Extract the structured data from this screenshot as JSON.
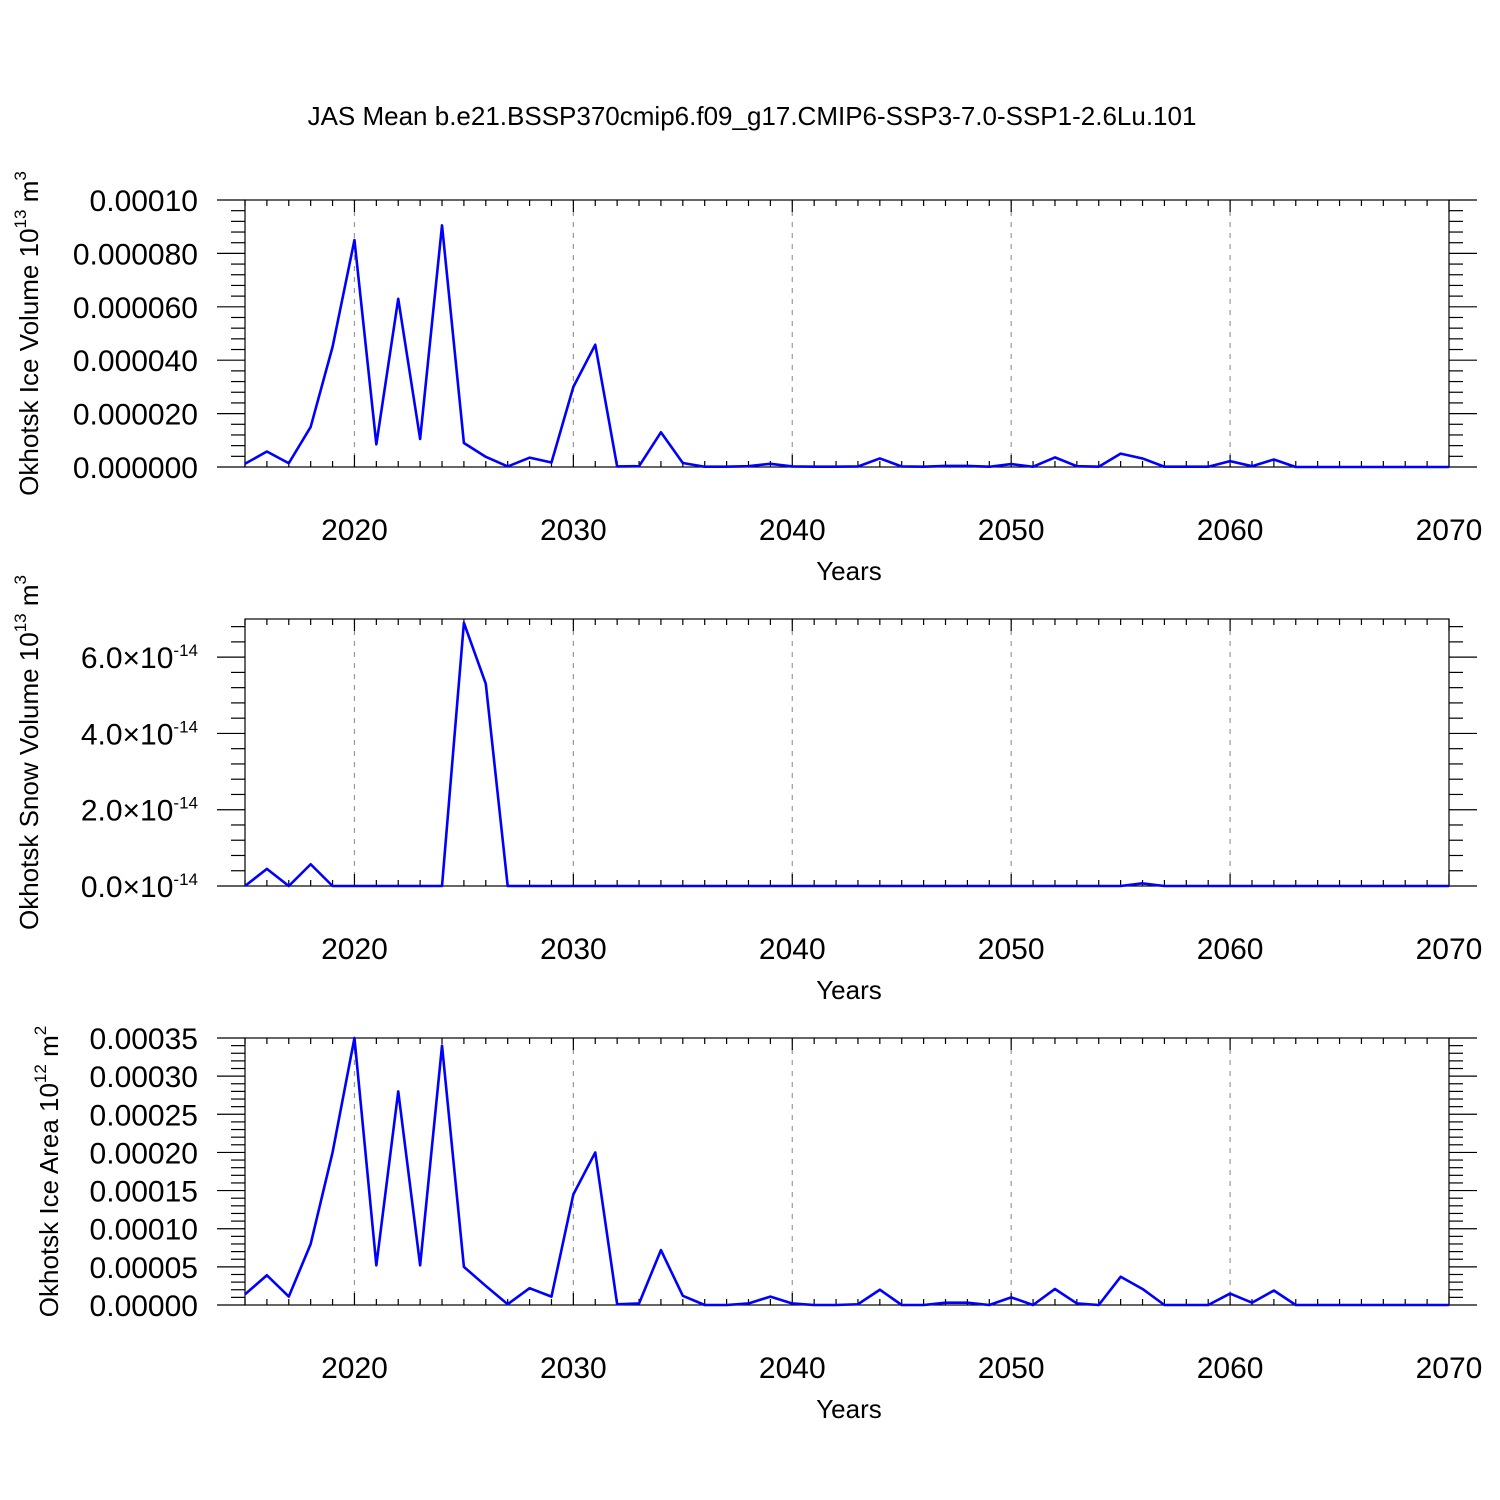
{
  "title": "JAS Mean b.e21.BSSP370cmip6.f09_g17.CMIP6-SSP3-7.0-SSP1-2.6Lu.101",
  "line_color": "#0000ff",
  "chart_data": [
    {
      "type": "line",
      "ylabel": "Okhotsk Ice Volume 10",
      "ylabel_exp": "13",
      "ylabel_unit": "m",
      "ylabel_unit_exp": "3",
      "xlabel": "Years",
      "xlim": [
        2015,
        2070
      ],
      "ylim": [
        0,
        0.0001
      ],
      "xticks": [
        "2020",
        "2030",
        "2040",
        "2050",
        "2060",
        "2070"
      ],
      "yticks": [
        {
          "value": 0,
          "label": "0.000000"
        },
        {
          "value": 2e-05,
          "label": "0.000020"
        },
        {
          "value": 4e-05,
          "label": "0.000040"
        },
        {
          "value": 6e-05,
          "label": "0.000060"
        },
        {
          "value": 8e-05,
          "label": "0.000080"
        },
        {
          "value": 0.0001,
          "label": "0.00010"
        }
      ],
      "grid": "x-major dashed",
      "x": [
        2015,
        2016,
        2017,
        2018,
        2019,
        2020,
        2021,
        2022,
        2023,
        2024,
        2025,
        2026,
        2027,
        2028,
        2029,
        2030,
        2031,
        2032,
        2033,
        2034,
        2035,
        2036,
        2037,
        2038,
        2039,
        2040,
        2041,
        2042,
        2043,
        2044,
        2045,
        2046,
        2047,
        2048,
        2049,
        2050,
        2051,
        2052,
        2053,
        2054,
        2055,
        2056,
        2057,
        2058,
        2059,
        2060,
        2061,
        2062,
        2063,
        2064,
        2065,
        2066,
        2067,
        2068,
        2069,
        2070
      ],
      "values": [
        1.2e-06,
        5.8e-06,
        1.4e-06,
        1.5e-05,
        4.5e-05,
        8.5e-05,
        8.5e-06,
        6.3e-05,
        1.05e-05,
        9.05e-05,
        9e-06,
        3.8e-06,
        2e-07,
        3.5e-06,
        1.7e-06,
        3e-05,
        4.58e-05,
        2e-07,
        3e-07,
        1.3e-05,
        1.5e-06,
        1e-07,
        1e-07,
        3e-07,
        1.2e-06,
        2e-07,
        1e-07,
        1e-07,
        2e-07,
        3.2e-06,
        2e-07,
        1e-07,
        4e-07,
        4e-07,
        1e-07,
        1.1e-06,
        1e-07,
        3.6e-06,
        3e-07,
        1e-07,
        5e-06,
        3.2e-06,
        1e-07,
        1e-07,
        1e-07,
        2.2e-06,
        3e-07,
        2.8e-06,
        0.0,
        0.0,
        0.0,
        0.0,
        0.0,
        0.0,
        0.0,
        0.0
      ]
    },
    {
      "type": "line",
      "ylabel": "Okhotsk Snow Volume 10",
      "ylabel_exp": "13",
      "ylabel_unit": "m",
      "ylabel_unit_exp": "3",
      "xlabel": "Years",
      "xlim": [
        2015,
        2070
      ],
      "ylim": [
        0,
        7e-14
      ],
      "xticks": [
        "2020",
        "2030",
        "2040",
        "2050",
        "2060",
        "2070"
      ],
      "yticks": [
        {
          "value": 0,
          "label": "0.0",
          "times": "×",
          "base": "10",
          "exp": "-14"
        },
        {
          "value": 2e-14,
          "label": "2.0",
          "times": "×",
          "base": "10",
          "exp": "-14"
        },
        {
          "value": 4e-14,
          "label": "4.0",
          "times": "×",
          "base": "10",
          "exp": "-14"
        },
        {
          "value": 6e-14,
          "label": "6.0",
          "times": "×",
          "base": "10",
          "exp": "-14"
        }
      ],
      "grid": "x-major dashed",
      "x": [
        2015,
        2016,
        2017,
        2018,
        2019,
        2020,
        2021,
        2022,
        2023,
        2024,
        2025,
        2026,
        2027,
        2028,
        2029,
        2030,
        2031,
        2032,
        2033,
        2034,
        2035,
        2036,
        2037,
        2038,
        2039,
        2040,
        2041,
        2042,
        2043,
        2044,
        2045,
        2046,
        2047,
        2048,
        2049,
        2050,
        2051,
        2052,
        2053,
        2054,
        2055,
        2056,
        2057,
        2058,
        2059,
        2060,
        2061,
        2062,
        2063,
        2064,
        2065,
        2066,
        2067,
        2068,
        2069,
        2070
      ],
      "values": [
        0.0,
        4.5e-15,
        0.0,
        5.7e-15,
        0.0,
        0.0,
        0.0,
        0.0,
        0.0,
        0.0,
        6.9e-14,
        5.3e-14,
        0.0,
        0.0,
        0.0,
        0.0,
        0.0,
        0.0,
        0.0,
        0.0,
        0.0,
        0.0,
        0.0,
        0.0,
        0.0,
        0.0,
        0.0,
        0.0,
        0.0,
        0.0,
        0.0,
        0.0,
        0.0,
        0.0,
        0.0,
        0.0,
        0.0,
        0.0,
        0.0,
        0.0,
        0.0,
        7e-16,
        0.0,
        0.0,
        0.0,
        0.0,
        0.0,
        0.0,
        0.0,
        0.0,
        0.0,
        0.0,
        0.0,
        0.0,
        0.0,
        0.0
      ]
    },
    {
      "type": "line",
      "ylabel": "Okhotsk Ice Area 10",
      "ylabel_exp": "12",
      "ylabel_unit": "m",
      "ylabel_unit_exp": "2",
      "xlabel": "Years",
      "xlim": [
        2015,
        2070
      ],
      "ylim": [
        0,
        0.00035
      ],
      "xticks": [
        "2020",
        "2030",
        "2040",
        "2050",
        "2060",
        "2070"
      ],
      "yticks": [
        {
          "value": 0,
          "label": "0.00000"
        },
        {
          "value": 5e-05,
          "label": "0.00005"
        },
        {
          "value": 0.0001,
          "label": "0.00010"
        },
        {
          "value": 0.00015,
          "label": "0.00015"
        },
        {
          "value": 0.0002,
          "label": "0.00020"
        },
        {
          "value": 0.00025,
          "label": "0.00025"
        },
        {
          "value": 0.0003,
          "label": "0.00030"
        },
        {
          "value": 0.00035,
          "label": "0.00035"
        }
      ],
      "grid": "x-major dashed",
      "x": [
        2015,
        2016,
        2017,
        2018,
        2019,
        2020,
        2021,
        2022,
        2023,
        2024,
        2025,
        2026,
        2027,
        2028,
        2029,
        2030,
        2031,
        2032,
        2033,
        2034,
        2035,
        2036,
        2037,
        2038,
        2039,
        2040,
        2041,
        2042,
        2043,
        2044,
        2045,
        2046,
        2047,
        2048,
        2049,
        2050,
        2051,
        2052,
        2053,
        2054,
        2055,
        2056,
        2057,
        2058,
        2059,
        2060,
        2061,
        2062,
        2063,
        2064,
        2065,
        2066,
        2067,
        2068,
        2069,
        2070
      ],
      "values": [
        1.4e-05,
        3.9e-05,
        1.1e-05,
        8e-05,
        0.0002,
        0.00035,
        5.2e-05,
        0.00028,
        5.2e-05,
        0.00034,
        5e-05,
        2.5e-05,
        1e-06,
        2.2e-05,
        1.1e-05,
        0.000145,
        0.0002,
        1e-06,
        2e-06,
        7.2e-05,
        1.2e-05,
        0.0,
        0.0,
        2e-06,
        1.1e-05,
        2e-06,
        0.0,
        0.0,
        1e-06,
        2e-05,
        0.0,
        0.0,
        3e-06,
        3e-06,
        0.0,
        1e-05,
        0.0,
        2.1e-05,
        2e-06,
        0.0,
        3.7e-05,
        2.1e-05,
        0.0,
        0.0,
        0.0,
        1.5e-05,
        3e-06,
        1.9e-05,
        0.0,
        0.0,
        0.0,
        0.0,
        0.0,
        0.0,
        0.0,
        0.0
      ]
    }
  ]
}
